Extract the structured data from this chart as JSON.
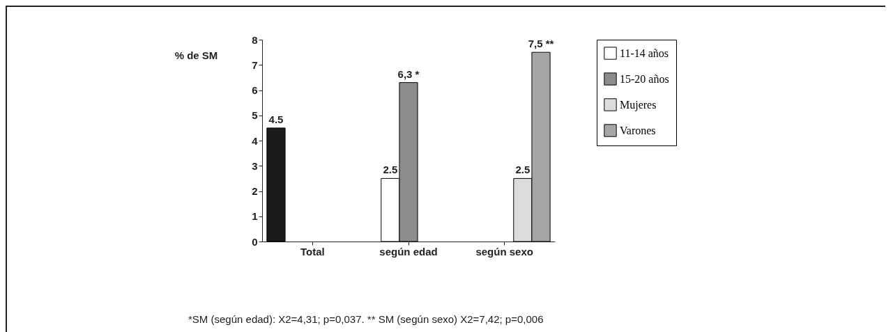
{
  "chart_data": {
    "type": "bar",
    "ylabel": "% de SM",
    "categories": [
      "Total",
      "según edad",
      "según sexo"
    ],
    "series": [
      {
        "color": "#1a1a1a",
        "values": [
          4.5,
          null,
          null
        ],
        "value_labels": [
          "4.5",
          null,
          null
        ]
      },
      {
        "name": "11-14 años",
        "color": "#ffffff",
        "values": [
          null,
          2.5,
          null
        ],
        "value_labels": [
          null,
          "2.5",
          null
        ]
      },
      {
        "name": "15-20 años",
        "color": "#8c8c8c",
        "values": [
          null,
          6.3,
          null
        ],
        "value_labels": [
          null,
          "6,3 *",
          null
        ]
      },
      {
        "name": "Mujeres",
        "color": "#dcdcdc",
        "values": [
          null,
          null,
          2.5
        ],
        "value_labels": [
          null,
          null,
          "2.5"
        ]
      },
      {
        "name": "Varones",
        "color": "#a6a6a6",
        "values": [
          null,
          null,
          7.5
        ],
        "value_labels": [
          null,
          null,
          "7,5 **"
        ]
      }
    ],
    "ylim": [
      0,
      8
    ],
    "yticks": [
      0,
      1,
      2,
      3,
      4,
      5,
      6,
      7,
      8
    ],
    "grid": false,
    "legend": "right",
    "annotations": [
      "*SM (según edad): X2=4,31; p=0,037. ** SM (según sexo) X2=7,42; p=0,006"
    ]
  }
}
